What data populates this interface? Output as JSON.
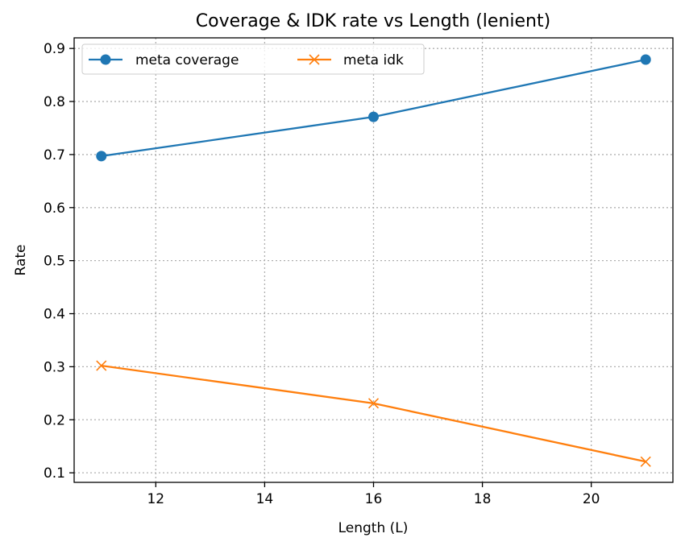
{
  "chart_data": {
    "type": "line",
    "title": "Coverage & IDK rate vs Length (lenient)",
    "xlabel": "Length (L)",
    "ylabel": "Rate",
    "xlim": [
      10.5,
      21.5
    ],
    "ylim": [
      0.082,
      0.92
    ],
    "xticks": [
      12,
      14,
      16,
      18,
      20
    ],
    "yticks": [
      0.1,
      0.2,
      0.3,
      0.4,
      0.5,
      0.6,
      0.7,
      0.8,
      0.9
    ],
    "grid": true,
    "legend_position": "top-left",
    "legend_columns": 2,
    "x": [
      11,
      16,
      21
    ],
    "series": [
      {
        "name": "meta coverage",
        "values": [
          0.697,
          0.771,
          0.879
        ],
        "color": "#1f77b4",
        "marker": "circle"
      },
      {
        "name": "meta idk",
        "values": [
          0.302,
          0.231,
          0.121
        ],
        "color": "#ff7f0e",
        "marker": "x"
      }
    ]
  }
}
